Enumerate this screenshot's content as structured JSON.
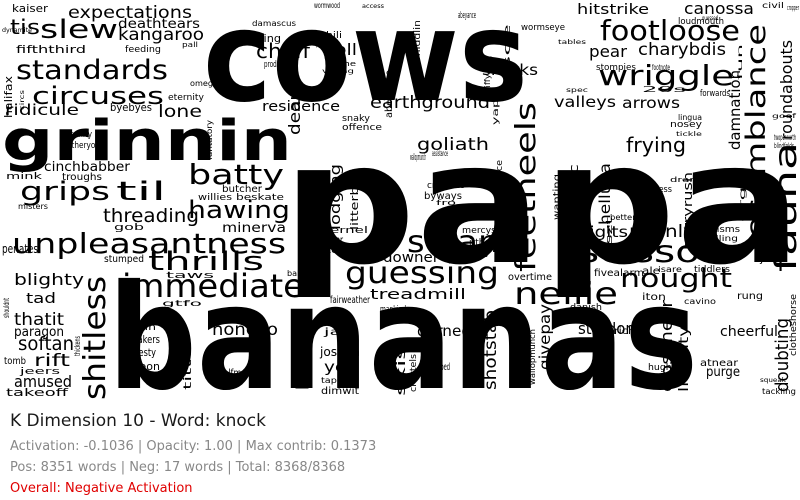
{
  "title": "K Dimension 10 - Word: knock",
  "stats": {
    "activation_line": "Activation: -0.1036 | Opacity: 1.00 | Max contrib: 0.1373",
    "counts_line": "Pos: 8351 words | Neg: 17 words | Total: 8368/8368",
    "overall": "Overall: Negative Activation"
  },
  "colors": {
    "background": "#ffffff",
    "word": "#000000",
    "title": "#1a1a1a",
    "stats": "#888888",
    "overall": "#e00000"
  },
  "words": [
    "papa",
    "bananas",
    "cows",
    "grinnin",
    "fauna",
    "immediate",
    "unpleasantness",
    "scissors",
    "nellie",
    "guessing",
    "scram",
    "resemblance",
    "batty",
    "wriggle",
    "standards",
    "circuses",
    "slew",
    "thrills",
    "feetheels",
    "footloose",
    "shitless",
    "nought",
    "hawing",
    "til",
    "grips",
    "threading",
    "goliath",
    "frying",
    "earthground",
    "tis",
    "expectations",
    "kangaroo",
    "deathtears",
    "chaff",
    "poll",
    "hitstrike",
    "canossa",
    "charybdis",
    "sharks",
    "pear",
    "residence",
    "valleys",
    "arrows",
    "plainly",
    "digits",
    "minerva",
    "slue",
    "downer",
    "treadmill",
    "lone",
    "ridicule",
    "cinchbabber",
    "durned",
    "honcho",
    "pajamas",
    "yen",
    "joseph",
    "shotstab",
    "stardom",
    "givepay",
    "amused",
    "softan",
    "rift",
    "thatit",
    "paragon",
    "tad",
    "blighty",
    "penates",
    "doubting",
    "roundabouts",
    "damnation",
    "cheerful",
    "purge",
    "closenear",
    "helluva",
    "hurryrush",
    "fifththird",
    "kaiser",
    "dynamite",
    "halifax",
    "circs",
    "byebyes",
    "ethos",
    "eternity",
    "chili",
    "damascus",
    "changing",
    "omega",
    "feeding",
    "pall",
    "dearly",
    "bygones",
    "abeyance",
    "middlin",
    "sce",
    "wormseye",
    "stompies",
    "footnote",
    "20s",
    "loudmouth",
    "forwards",
    "nosey",
    "lingua",
    "drama",
    "greatness",
    "snakeoil",
    "liszt",
    "politic",
    "wanting",
    "wilding",
    "crannies",
    "byways",
    "lodging",
    "litterbug",
    "understood",
    "mercys",
    "itthem",
    "upwards",
    "overtime",
    "fivealarm",
    "ale",
    "isare",
    "tiddlers",
    "iton",
    "cavino",
    "rung",
    "joes",
    "prisms",
    "billing",
    "betters",
    "jericho",
    "danish",
    "liability",
    "atnear",
    "hughie",
    "tackling",
    "squeak",
    "clotheshorse",
    "soft",
    "kadoova",
    "louie",
    "simply",
    "tiny",
    "tidy",
    "slumped",
    "imbibing",
    "skis",
    "jag",
    "halfmast",
    "titter",
    "carbon",
    "travesty",
    "shakers",
    "liein",
    "jeers",
    "tomb",
    "thickens",
    "gtfo",
    "taws",
    "balances",
    "fairweather",
    "mankind",
    "breather",
    "write",
    "kernel",
    "sanity",
    "thitheryon",
    "mink",
    "troughs",
    "misters",
    "butcher",
    "willies",
    "beskate",
    "ferrets",
    "advertise",
    "piffy",
    "offence",
    "snaky",
    "poolside",
    "tepid",
    "dimwit",
    "taped",
    "outin",
    "chattels",
    "groundwork",
    "wallopmunch",
    "assistance",
    "fro",
    "yap",
    "jiffy",
    "stuffe",
    "gob",
    "stumped",
    "chocks",
    "pegged",
    "shouldnt",
    "takeoff",
    "tame",
    "production",
    "voting",
    "passion",
    "wormwood",
    "access",
    "mares",
    "tables",
    "spec",
    "guessed",
    "tickle",
    "civil",
    "cropper",
    "whiz",
    "fun",
    "tapp",
    "fantatory",
    "orgy",
    "blindfolds",
    "twopennorth",
    "goof",
    "nosy",
    "mlow"
  ]
}
